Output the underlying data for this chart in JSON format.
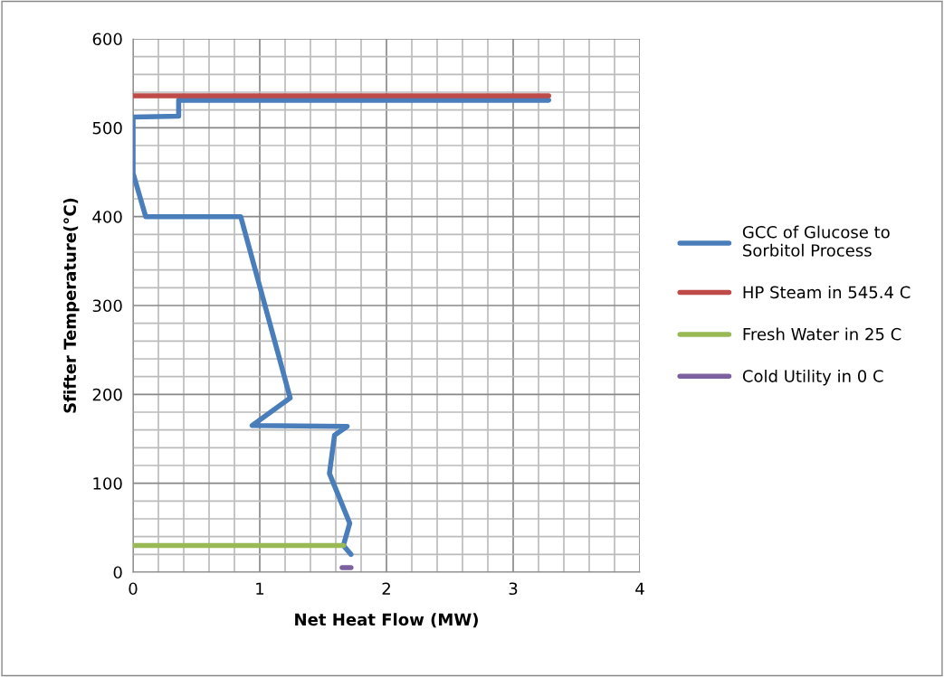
{
  "chart_data": {
    "type": "line",
    "xlabel": "Net Heat Flow (MW)",
    "ylabel": "Sfifter Temperature(°C)",
    "xlim": [
      0,
      4
    ],
    "xticks": [
      0,
      1,
      2,
      3,
      4
    ],
    "ylim": [
      0,
      600
    ],
    "yticks": [
      0,
      100,
      200,
      300,
      400,
      500,
      600
    ],
    "grid": true,
    "legend": "right",
    "marker": "none",
    "line_style": "solid",
    "series": [
      {
        "name": "GCC of Glucose to Sorbitol Process",
        "color": "#4a7ebb",
        "x": [
          3.28,
          0.36,
          0.36,
          0,
          0,
          0.1,
          0.85,
          1.24,
          0.94,
          1.69,
          1.59,
          1.55,
          1.71,
          1.66,
          1.72
        ],
        "values": [
          531,
          531,
          513,
          512,
          449,
          400,
          400,
          196,
          165,
          164,
          154,
          111,
          55,
          30,
          20
        ]
      },
      {
        "name": "HP Steam in 545.4 C",
        "color": "#be4b48",
        "x": [
          0,
          3.28
        ],
        "values": [
          536,
          536
        ]
      },
      {
        "name": "Fresh Water in 25 C",
        "color": "#98b954",
        "x": [
          0,
          1.66
        ],
        "values": [
          30,
          30
        ]
      },
      {
        "name": "Cold Utility in 0 C",
        "color": "#7d60a0",
        "x": [
          1.65,
          1.72
        ],
        "values": [
          5,
          5
        ]
      }
    ]
  }
}
